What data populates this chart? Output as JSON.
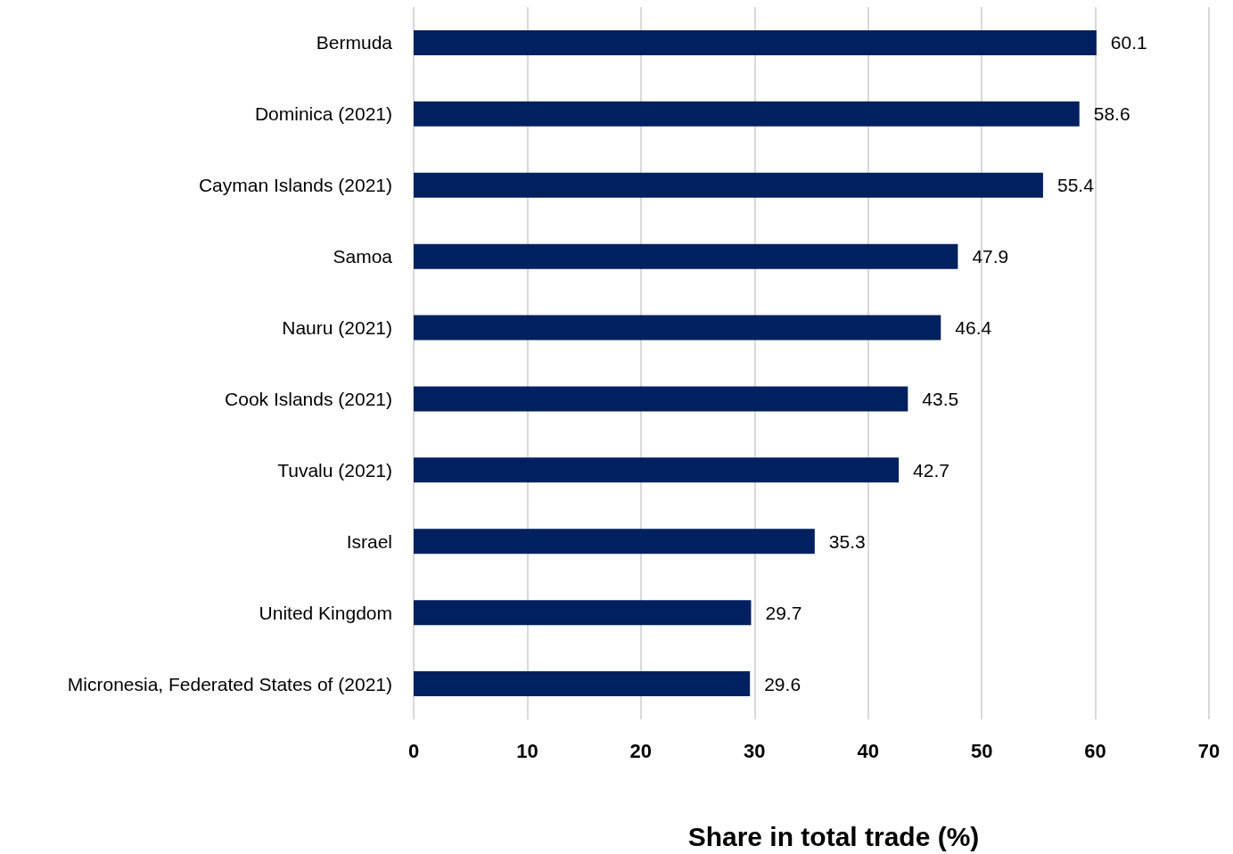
{
  "chart_data": {
    "type": "bar",
    "orientation": "horizontal",
    "categories": [
      "Bermuda",
      "Dominica (2021)",
      "Cayman Islands (2021)",
      "Samoa",
      "Nauru (2021)",
      "Cook Islands (2021)",
      "Tuvalu (2021)",
      "Israel",
      "United Kingdom",
      "Micronesia, Federated States of (2021)"
    ],
    "values": [
      60.1,
      58.6,
      55.4,
      47.9,
      46.4,
      43.5,
      42.7,
      35.3,
      29.7,
      29.6
    ],
    "color": "#002060",
    "xlabel": "Share in total trade (%)",
    "xlim": [
      0,
      70
    ],
    "xticks": [
      0,
      10,
      20,
      30,
      40,
      50,
      60,
      70
    ],
    "grid": "x",
    "data_labels": true
  }
}
